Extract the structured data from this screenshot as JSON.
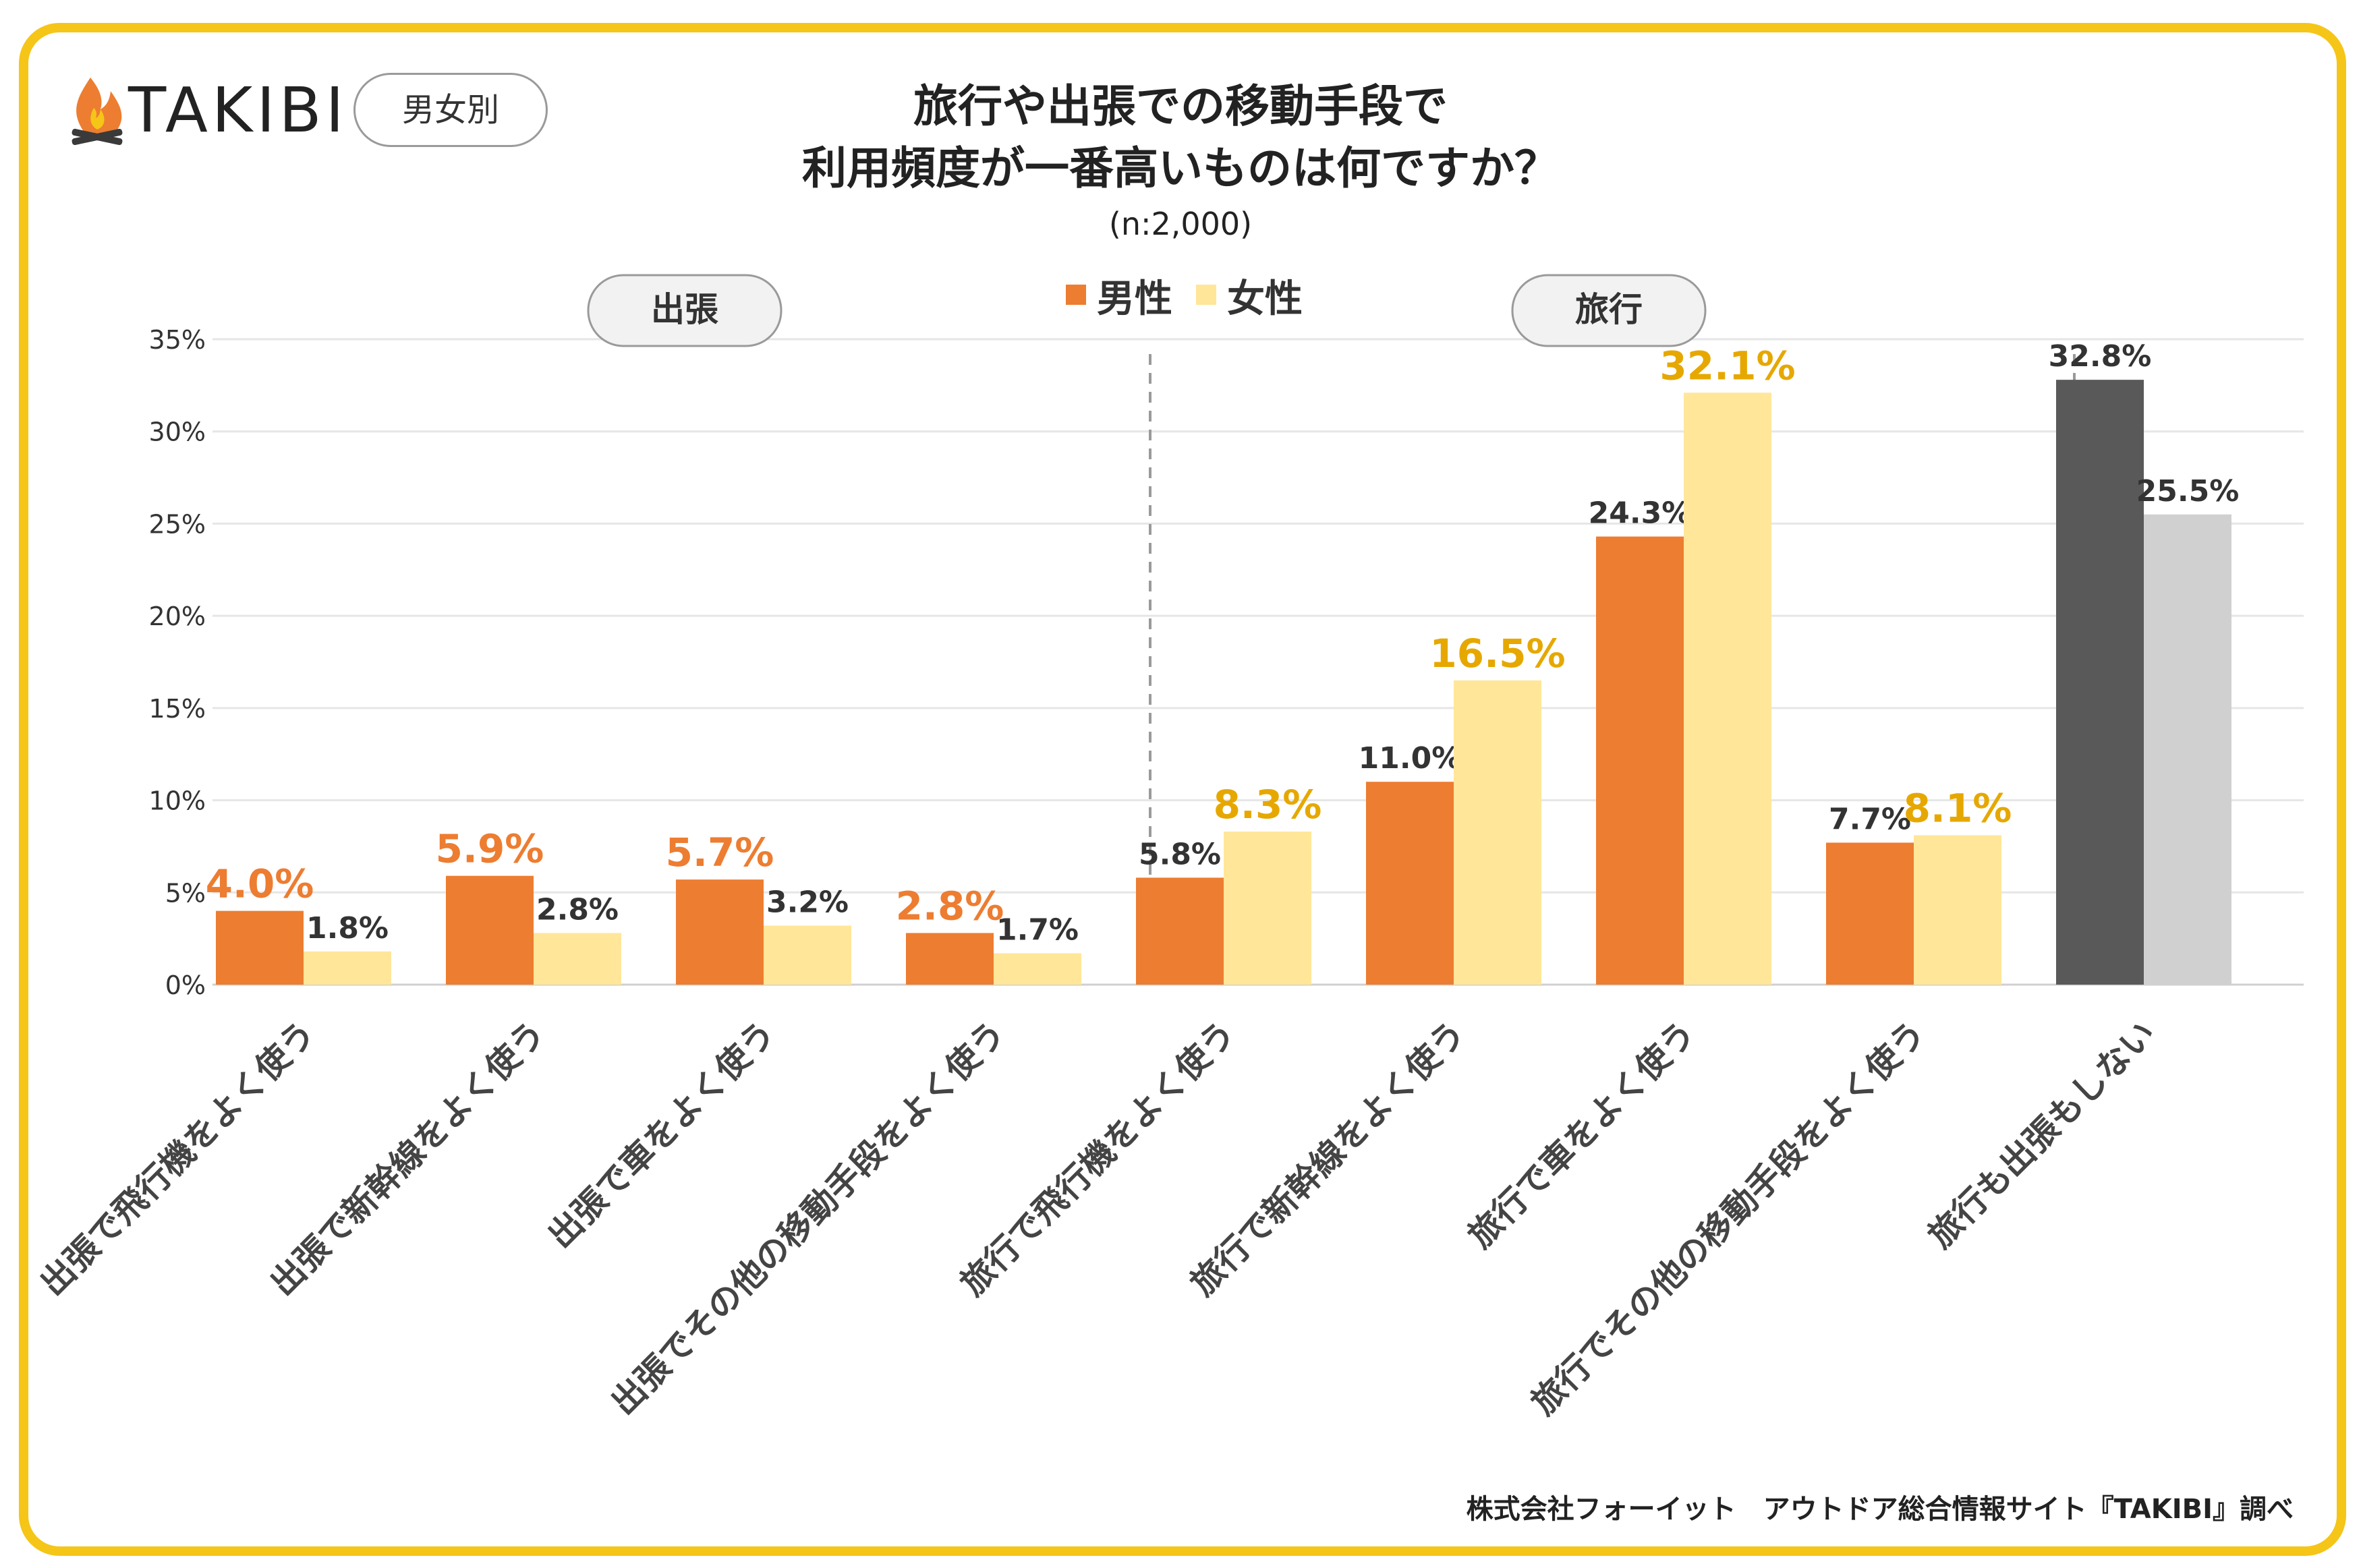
{
  "brand": {
    "name": "TAKIBI",
    "badge": "男女別"
  },
  "header": {
    "title_line1": "旅行や出張での移動手段で",
    "title_line2": "利用頻度が一番高いものは何ですか？",
    "sample": "(n:2,000)"
  },
  "footer": {
    "credit": "株式会社フォーイット　アウトドア総合情報サイト『TAKIBI』調べ"
  },
  "colors": {
    "male": "#ED7D31",
    "female": "#FFE699",
    "neither_male": "#595959",
    "neither_female": "#D0D0D0",
    "frame": "#F5C518",
    "label_highlight_female": "#E6A800",
    "label_highlight_male": "#ED7D31",
    "text": "#333333",
    "grid": "#E6E6E6"
  },
  "chart_data": {
    "type": "bar",
    "title": "旅行や出張での移動手段で利用頻度が一番高いものは何ですか？",
    "ylabel": "",
    "xlabel": "",
    "ylim": [
      0,
      35
    ],
    "yticks": [
      0,
      5,
      10,
      15,
      20,
      25,
      30,
      35
    ],
    "ytick_labels": [
      "0%",
      "5%",
      "10%",
      "15%",
      "20%",
      "25%",
      "30%",
      "35%"
    ],
    "legend": {
      "position": "top-center",
      "entries": [
        "男性",
        "女性"
      ]
    },
    "groups": [
      {
        "label": "出張",
        "categories": [
          0,
          1,
          2,
          3
        ]
      },
      {
        "label": "旅行",
        "categories": [
          4,
          5,
          6,
          7
        ]
      }
    ],
    "categories": [
      "出張で飛行機をよく使う",
      "出張で新幹線をよく使う",
      "出張で車をよく使う",
      "出張でその他の移動手段をよく使う",
      "旅行で飛行機をよく使う",
      "旅行で新幹線をよく使う",
      "旅行で車をよく使う",
      "旅行でその他の移動手段をよく使う",
      "旅行も出張もしない"
    ],
    "series": [
      {
        "name": "男性",
        "values": [
          4.0,
          5.9,
          5.7,
          2.8,
          5.8,
          11.0,
          24.3,
          7.7,
          32.8
        ],
        "labels": [
          "4.0%",
          "5.9%",
          "5.7%",
          "2.8%",
          "5.8%",
          "11.0%",
          "24.3%",
          "7.7%",
          "32.8%"
        ],
        "highlight": [
          true,
          true,
          true,
          true,
          false,
          false,
          false,
          false,
          false
        ]
      },
      {
        "name": "女性",
        "values": [
          1.8,
          2.8,
          3.2,
          1.7,
          8.3,
          16.5,
          32.1,
          8.1,
          25.5
        ],
        "labels": [
          "1.8%",
          "2.8%",
          "3.2%",
          "1.7%",
          "8.3%",
          "16.5%",
          "32.1%",
          "8.1%",
          "25.5%"
        ],
        "highlight": [
          false,
          false,
          false,
          false,
          true,
          true,
          true,
          true,
          false
        ]
      }
    ]
  }
}
